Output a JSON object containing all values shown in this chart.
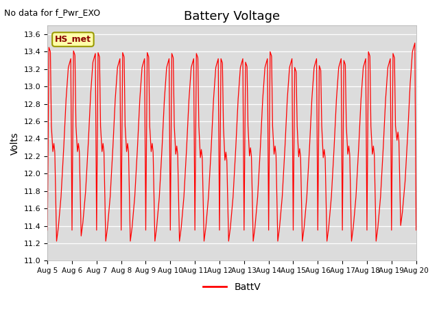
{
  "title": "Battery Voltage",
  "no_data_text": "No data for f_Pwr_EXO",
  "ylabel": "Volts",
  "ylim": [
    11.0,
    13.7
  ],
  "ytick_min": 11.0,
  "ytick_max": 13.6,
  "ytick_step": 0.2,
  "line_color": "red",
  "line_label": "BattV",
  "hs_met_label": "HS_met",
  "bg_color": "#dcdcdc",
  "legend_box_facecolor": "#ffffaa",
  "legend_box_edgecolor": "#999900",
  "title_fontsize": 13,
  "label_fontsize": 10,
  "annotation_fontsize": 9,
  "figwidth": 6.4,
  "figheight": 4.8,
  "dpi": 100
}
